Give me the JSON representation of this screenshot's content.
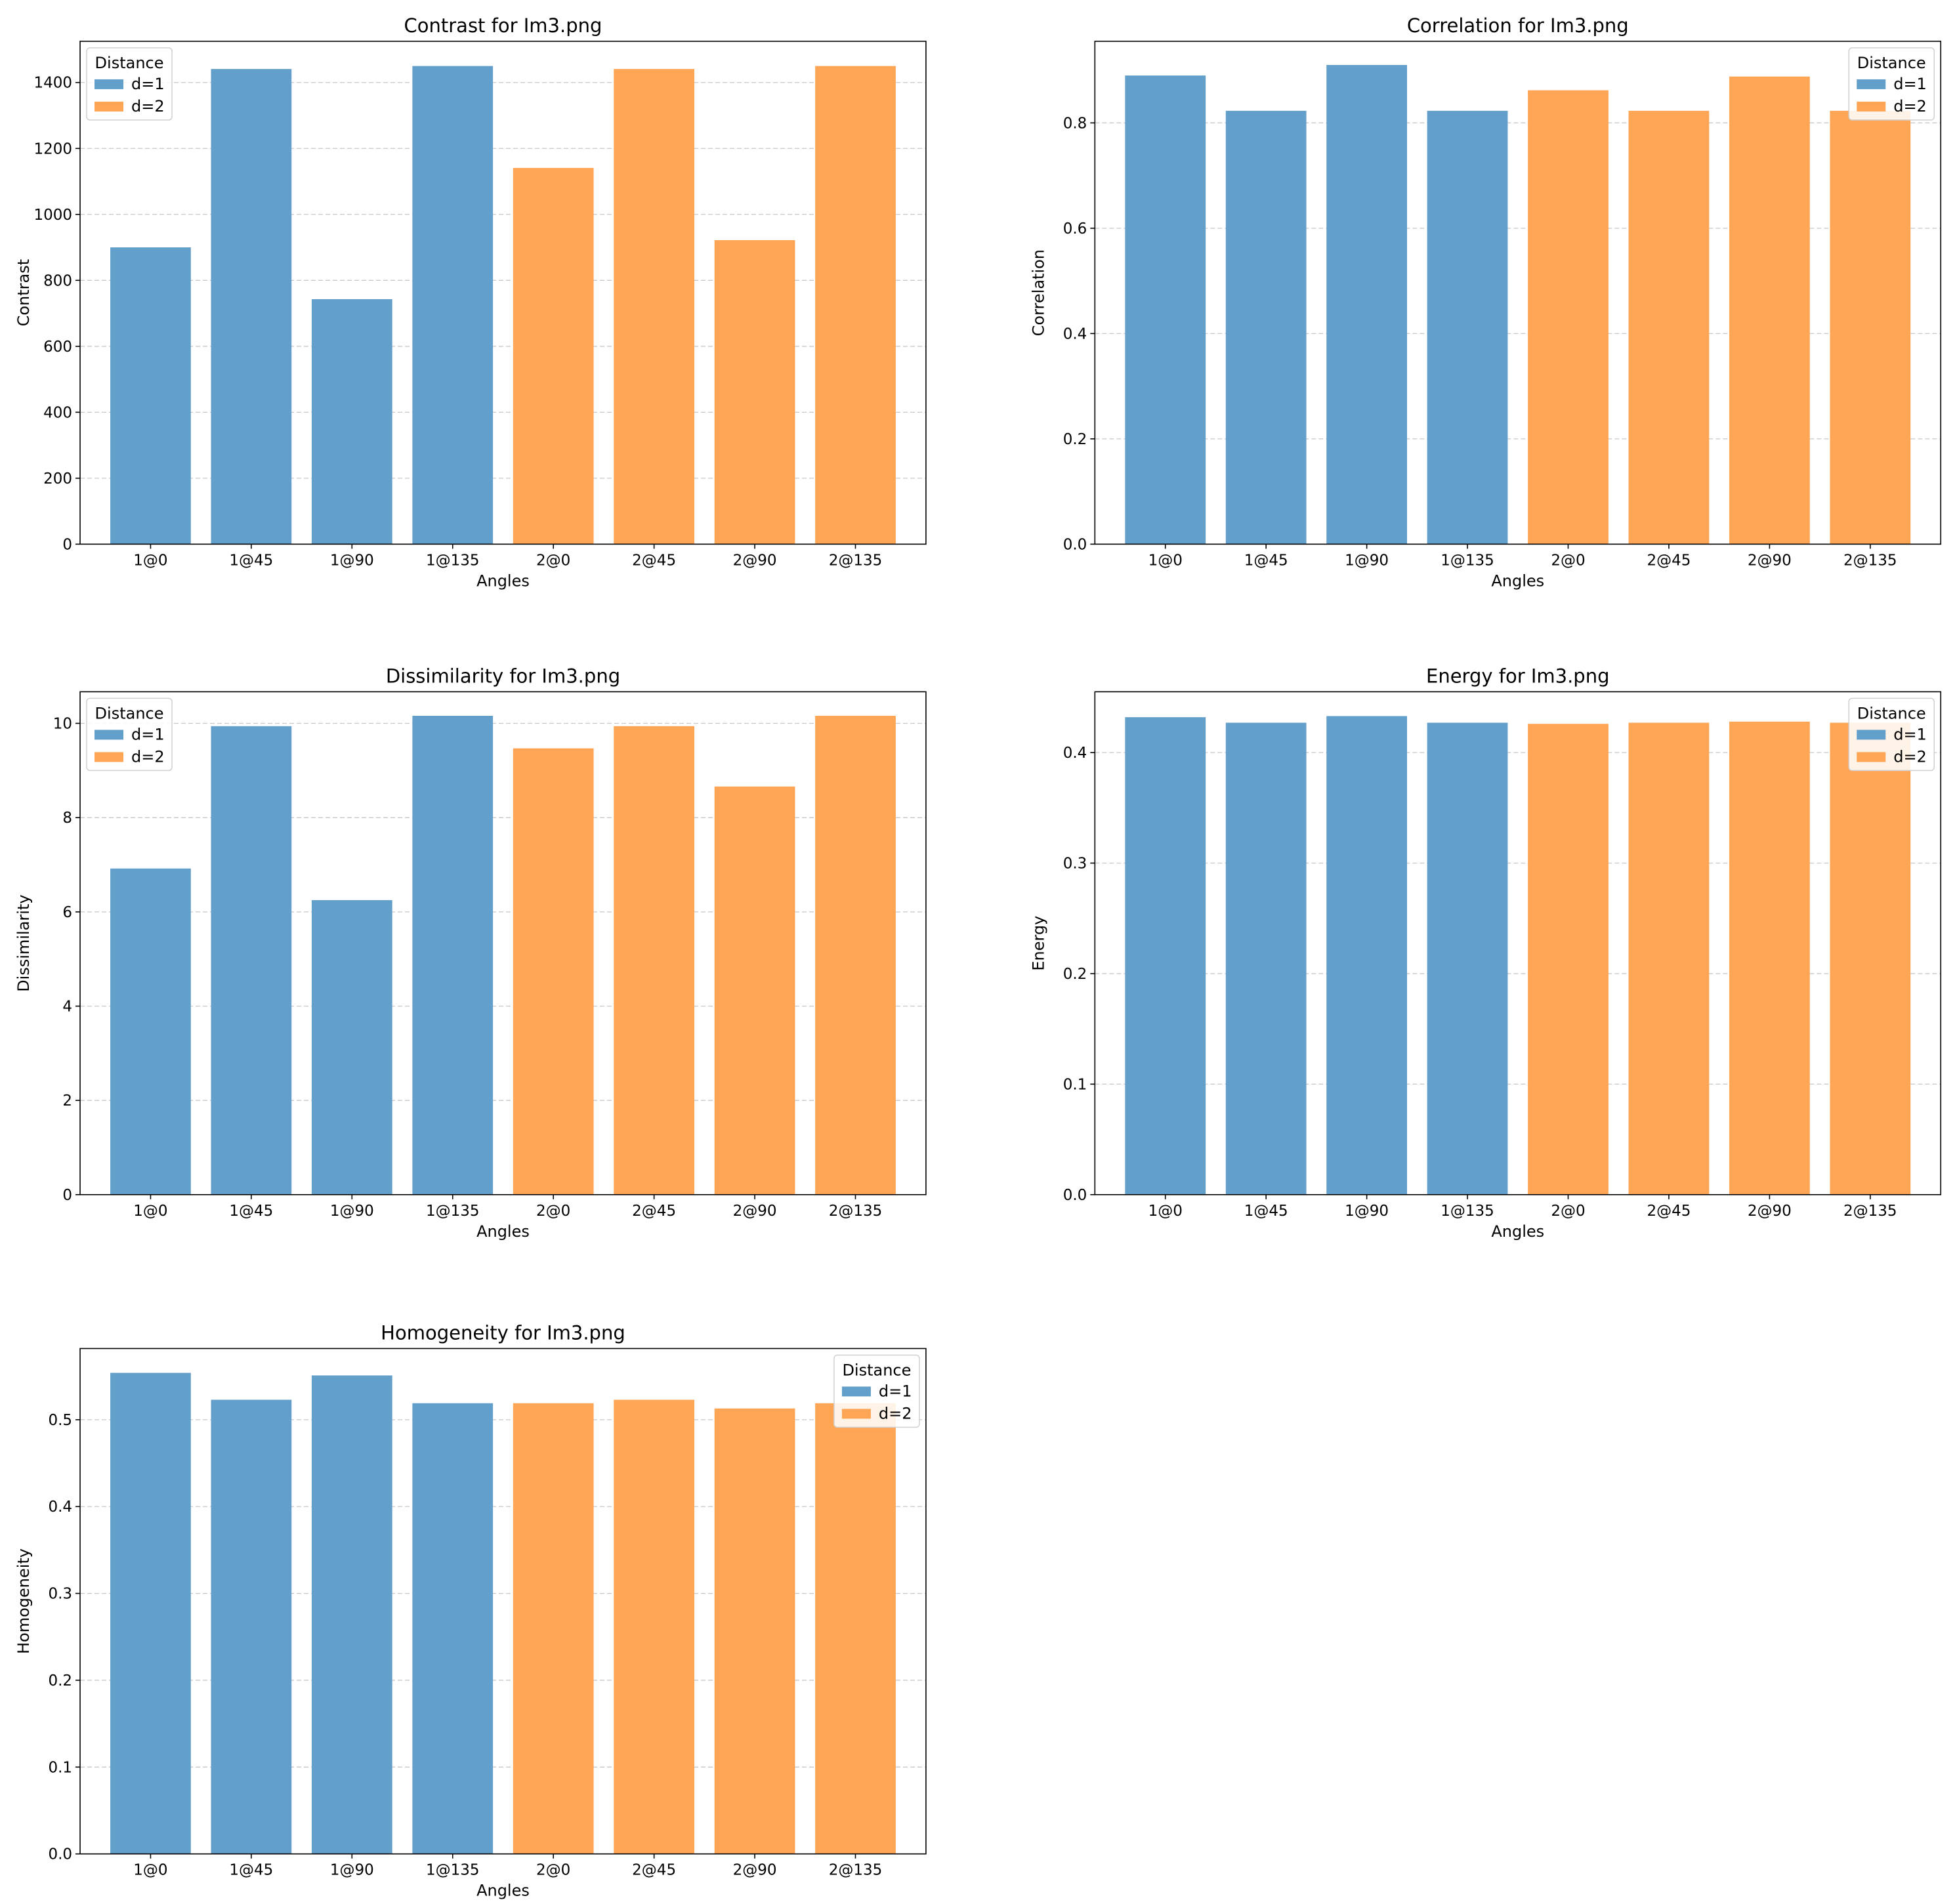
{
  "colors": {
    "d1": "#629fca",
    "d2": "#ffa556",
    "grid": "#b0b0b0",
    "axis": "#000000"
  },
  "chart_data": [
    {
      "type": "bar",
      "title": "Contrast for Im3.png",
      "xlabel": "Angles",
      "ylabel": "Contrast",
      "categories": [
        "1@0",
        "1@45",
        "1@90",
        "1@135",
        "2@0",
        "2@45",
        "2@90",
        "2@135"
      ],
      "values": [
        900,
        1441,
        743,
        1450,
        1141,
        1441,
        922,
        1450
      ],
      "groups": [
        "d=1",
        "d=1",
        "d=1",
        "d=1",
        "d=2",
        "d=2",
        "d=2",
        "d=2"
      ],
      "ylim": [
        0,
        1525
      ],
      "yticks": [
        0,
        200,
        400,
        600,
        800,
        1000,
        1200,
        1400
      ],
      "grid": "y-dashed",
      "legend": {
        "title": "Distance",
        "entries": [
          "d=1",
          "d=2"
        ],
        "location": "upper left"
      }
    },
    {
      "type": "bar",
      "title": "Correlation for Im3.png",
      "xlabel": "Angles",
      "ylabel": "Correlation",
      "categories": [
        "1@0",
        "1@45",
        "1@90",
        "1@135",
        "2@0",
        "2@45",
        "2@90",
        "2@135"
      ],
      "values": [
        0.89,
        0.823,
        0.91,
        0.823,
        0.862,
        0.823,
        0.888,
        0.823
      ],
      "groups": [
        "d=1",
        "d=1",
        "d=1",
        "d=1",
        "d=2",
        "d=2",
        "d=2",
        "d=2"
      ],
      "ylim": [
        0,
        0.955
      ],
      "yticks": [
        0.0,
        0.2,
        0.4,
        0.6,
        0.8
      ],
      "grid": "y-dashed",
      "legend": {
        "title": "Distance",
        "entries": [
          "d=1",
          "d=2"
        ],
        "location": "upper right"
      }
    },
    {
      "type": "bar",
      "title": "Dissimilarity for Im3.png",
      "xlabel": "Angles",
      "ylabel": "Dissimilarity",
      "categories": [
        "1@0",
        "1@45",
        "1@90",
        "1@135",
        "2@0",
        "2@45",
        "2@90",
        "2@135"
      ],
      "values": [
        6.92,
        9.94,
        6.25,
        10.16,
        9.47,
        9.94,
        8.66,
        10.16
      ],
      "groups": [
        "d=1",
        "d=1",
        "d=1",
        "d=1",
        "d=2",
        "d=2",
        "d=2",
        "d=2"
      ],
      "ylim": [
        0,
        10.67
      ],
      "yticks": [
        0,
        2,
        4,
        6,
        8,
        10
      ],
      "grid": "y-dashed",
      "legend": {
        "title": "Distance",
        "entries": [
          "d=1",
          "d=2"
        ],
        "location": "upper left"
      }
    },
    {
      "type": "bar",
      "title": "Energy for Im3.png",
      "xlabel": "Angles",
      "ylabel": "Energy",
      "categories": [
        "1@0",
        "1@45",
        "1@90",
        "1@135",
        "2@0",
        "2@45",
        "2@90",
        "2@135"
      ],
      "values": [
        0.432,
        0.427,
        0.433,
        0.427,
        0.426,
        0.427,
        0.428,
        0.427
      ],
      "groups": [
        "d=1",
        "d=1",
        "d=1",
        "d=1",
        "d=2",
        "d=2",
        "d=2",
        "d=2"
      ],
      "ylim": [
        0,
        0.455
      ],
      "yticks": [
        0.0,
        0.1,
        0.2,
        0.3,
        0.4
      ],
      "grid": "y-dashed",
      "legend": {
        "title": "Distance",
        "entries": [
          "d=1",
          "d=2"
        ],
        "location": "upper right"
      }
    },
    {
      "type": "bar",
      "title": "Homogeneity for Im3.png",
      "xlabel": "Angles",
      "ylabel": "Homogeneity",
      "categories": [
        "1@0",
        "1@45",
        "1@90",
        "1@135",
        "2@0",
        "2@45",
        "2@90",
        "2@135"
      ],
      "values": [
        0.554,
        0.523,
        0.551,
        0.519,
        0.519,
        0.523,
        0.513,
        0.519
      ],
      "groups": [
        "d=1",
        "d=1",
        "d=1",
        "d=1",
        "d=2",
        "d=2",
        "d=2",
        "d=2"
      ],
      "ylim": [
        0,
        0.582
      ],
      "yticks": [
        0.0,
        0.1,
        0.2,
        0.3,
        0.4,
        0.5
      ],
      "grid": "y-dashed",
      "legend": {
        "title": "Distance",
        "entries": [
          "d=1",
          "d=2"
        ],
        "location": "upper right"
      }
    }
  ]
}
